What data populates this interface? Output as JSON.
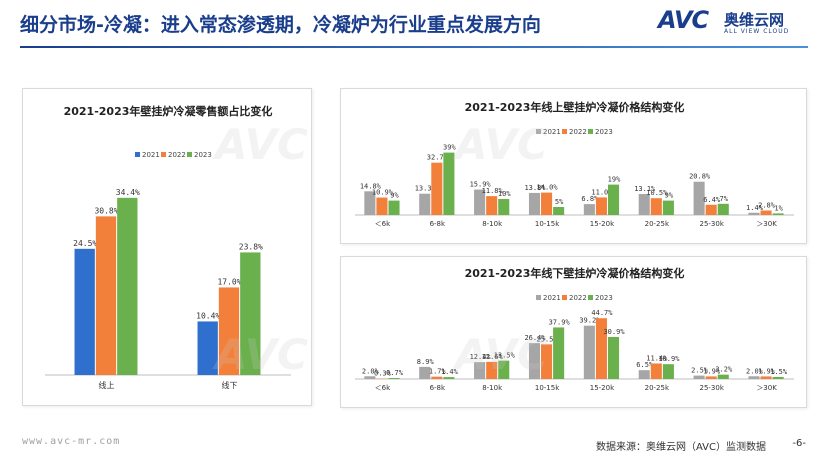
{
  "header": {
    "title": "细分市场-冷凝：进入常态渗透期，冷凝炉为行业重点发展方向"
  },
  "logo": {
    "main": "AVC",
    "cn": "奥维云网",
    "en": "ALL VIEW CLOUD"
  },
  "watermark": "AVC",
  "footer": {
    "website": "www.avc-mr.com",
    "source": "数据来源：奥维云网（AVC）监测数据",
    "page": "-6-"
  },
  "colors": {
    "s2021": "#2f6fce",
    "s2022": "#f2803a",
    "s2023": "#6ab04c",
    "neutral2021": "#a6a6a6"
  },
  "chart_data": [
    {
      "type": "bar",
      "title": "2021-2023年壁挂炉冷凝零售额占比变化",
      "categories": [
        "线上",
        "线下"
      ],
      "series": [
        {
          "name": "2021",
          "values": [
            24.5,
            10.4
          ],
          "labels": [
            "24.5%",
            "10.4%"
          ]
        },
        {
          "name": "2022",
          "values": [
            30.8,
            17.0
          ],
          "labels": [
            "30.8%",
            "17.0%"
          ]
        },
        {
          "name": "2023",
          "values": [
            34.4,
            23.8
          ],
          "labels": [
            "34.4%",
            "23.8%"
          ]
        }
      ],
      "legend": "top-center"
    },
    {
      "type": "bar",
      "title": "2021-2023年线上壁挂炉冷凝价格结构变化",
      "categories": [
        "＜6k",
        "6-8k",
        "8-10k",
        "10-15k",
        "15-20k",
        "20-25k",
        "25-30k",
        "＞30K"
      ],
      "series": [
        {
          "name": "2021",
          "values": [
            14.8,
            13.3,
            15.9,
            13.8,
            6.8,
            13.1,
            20.8,
            1.4
          ],
          "labels": [
            "14.8%",
            "13.3%",
            "15.9%",
            "13.8%",
            "6.8%",
            "13.1%",
            "20.8%",
            "1.4%"
          ]
        },
        {
          "name": "2022",
          "values": [
            10.9,
            32.7,
            11.8,
            14.0,
            11.0,
            10.5,
            6.4,
            2.8
          ],
          "labels": [
            "10.9%",
            "32.7%",
            "11.8%",
            "14.0%",
            "11.0%",
            "10.5%",
            "6.4%",
            "2.8%"
          ]
        },
        {
          "name": "2023",
          "values": [
            9,
            39,
            10,
            5,
            19,
            9,
            7,
            1
          ],
          "labels": [
            "9%",
            "39%",
            "10%",
            "5%",
            "19%",
            "9%",
            "7%",
            "1%"
          ]
        }
      ],
      "legend": "top-left"
    },
    {
      "type": "bar",
      "title": "2021-2023年线下壁挂炉冷凝价格结构变化",
      "categories": [
        "＜6k",
        "6-8k",
        "8-10k",
        "10-15k",
        "15-20k",
        "20-25k",
        "25-30k",
        "＞30K"
      ],
      "series": [
        {
          "name": "2021",
          "values": [
            2.0,
            8.9,
            12.4,
            26.4,
            39.2,
            6.5,
            2.5,
            2.0
          ],
          "labels": [
            "2.0%",
            "8.9%",
            "12.4%",
            "26.4%",
            "39.2%",
            "6.5%",
            "2.5%",
            "2.0%"
          ]
        },
        {
          "name": "2022",
          "values": [
            0.3,
            1.7,
            12.6,
            25.5,
            44.7,
            11.4,
            1.9,
            1.9
          ],
          "labels": [
            "0.3%",
            "1.7%",
            "12.6%",
            "25.5%",
            "44.7%",
            "11.4%",
            "1.9%",
            "1.9%"
          ]
        },
        {
          "name": "2023",
          "values": [
            0.7,
            1.4,
            13.5,
            37.9,
            30.9,
            10.9,
            3.2,
            1.5
          ],
          "labels": [
            "0.7%",
            "1.4%",
            "13.5%",
            "37.9%",
            "30.9%",
            "10.9%",
            "3.2%",
            "1.5%"
          ]
        }
      ],
      "legend": "top-left"
    }
  ]
}
